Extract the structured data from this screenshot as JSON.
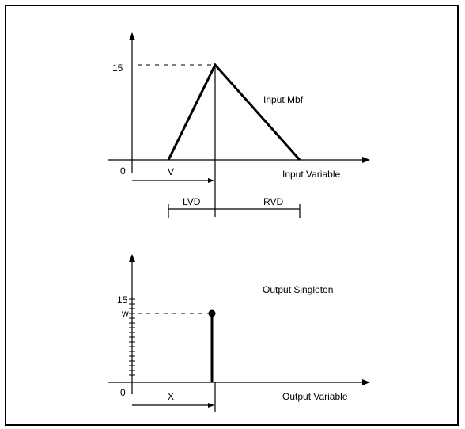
{
  "top_diagram": {
    "peak_label": "15",
    "origin_label": "0",
    "title": "Input Mbf",
    "x_axis_label": "Input Variable",
    "v_label": "V",
    "lvd_label": "LVD",
    "rvd_label": "RVD"
  },
  "bottom_diagram": {
    "max_label": "15",
    "w_label": "w",
    "origin_label": "0",
    "title": "Output Singleton",
    "x_axis_label": "Output Variable",
    "x_label": "X"
  }
}
